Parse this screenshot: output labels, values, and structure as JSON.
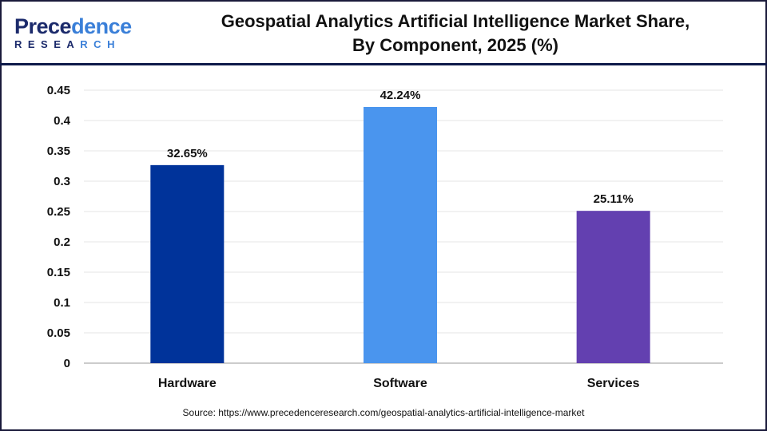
{
  "logo": {
    "line1": "Precedence",
    "line2": "RESEARCH"
  },
  "title_line1": "Geospatial Analytics Artificial Intelligence Market Share,",
  "title_line2": "By Component, 2025 (%)",
  "source": "Source: https://www.precedenceresearch.com/geospatial-analytics-artificial-intelligence-market",
  "chart_data": {
    "type": "bar",
    "title": "Geospatial Analytics Artificial Intelligence Market Share, By Component, 2025 (%)",
    "categories": [
      "Hardware",
      "Software",
      "Services"
    ],
    "values": [
      0.3265,
      0.4224,
      0.2511
    ],
    "data_labels": [
      "32.65%",
      "42.24%",
      "25.11%"
    ],
    "colors": [
      "#00339a",
      "#4a95ee",
      "#6340b0"
    ],
    "yticks": [
      "0",
      "0.05",
      "0.1",
      "0.15",
      "0.2",
      "0.25",
      "0.3",
      "0.35",
      "0.4",
      "0.45"
    ],
    "ylim": [
      0,
      0.45
    ],
    "grid": true,
    "xlabel": "",
    "ylabel": ""
  }
}
